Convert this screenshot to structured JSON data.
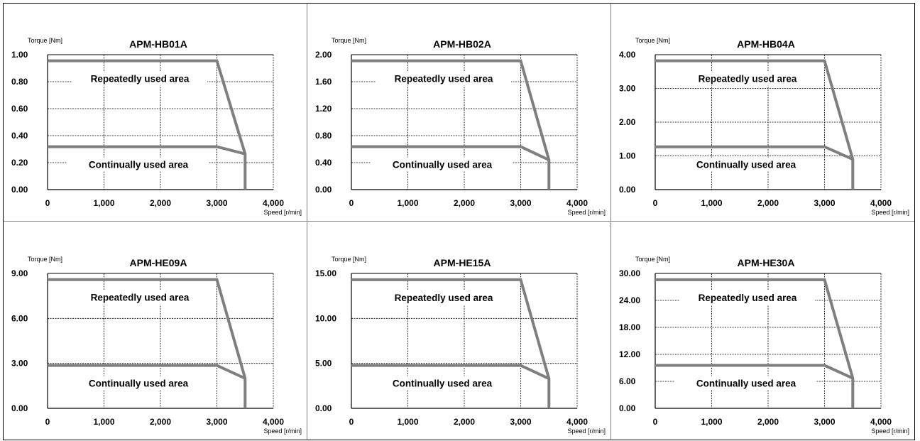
{
  "colors": {
    "curve": "#7f7f7f",
    "grid": "#000000",
    "frame": "#000000",
    "background": "#ffffff"
  },
  "common": {
    "ylabel": "Torque [Nm]",
    "xlabel": "Speed [r/min]",
    "repeated_label": "Repeatedly used area",
    "continual_label": "Continually used area",
    "x_ticks": [
      "0",
      "1,000",
      "2,000",
      "3,000",
      "4,000"
    ]
  },
  "chart_data": [
    {
      "type": "line",
      "title": "APM-HB01A",
      "xlim": [
        0,
        4000
      ],
      "ylim": [
        0,
        1.0
      ],
      "y_ticks": [
        0,
        0.2,
        0.4,
        0.6,
        0.8,
        1.0
      ],
      "y_tick_labels": [
        "0.00",
        "0.20",
        "0.40",
        "0.60",
        "0.80",
        "1.00"
      ],
      "series": [
        {
          "x": [
            0,
            3000,
            3500,
            3500
          ],
          "y": [
            0.955,
            0.955,
            0.265,
            0
          ]
        },
        {
          "x": [
            0,
            3000,
            3500
          ],
          "y": [
            0.318,
            0.318,
            0.265
          ]
        }
      ]
    },
    {
      "type": "line",
      "title": "APM-HB02A",
      "xlim": [
        0,
        4000
      ],
      "ylim": [
        0,
        2.0
      ],
      "y_ticks": [
        0,
        0.4,
        0.8,
        1.2,
        1.6,
        2.0
      ],
      "y_tick_labels": [
        "0.00",
        "0.40",
        "0.80",
        "1.20",
        "1.60",
        "2.00"
      ],
      "series": [
        {
          "x": [
            0,
            3000,
            3500,
            3500
          ],
          "y": [
            1.91,
            1.91,
            0.44,
            0
          ]
        },
        {
          "x": [
            0,
            3000,
            3500
          ],
          "y": [
            0.637,
            0.637,
            0.44
          ]
        }
      ]
    },
    {
      "type": "line",
      "title": "APM-HB04A",
      "xlim": [
        0,
        4000
      ],
      "ylim": [
        0,
        4.0
      ],
      "y_ticks": [
        0,
        1,
        2,
        3,
        4
      ],
      "y_tick_labels": [
        "0.00",
        "1.00",
        "2.00",
        "3.00",
        "4.00"
      ],
      "series": [
        {
          "x": [
            0,
            3000,
            3500,
            3500
          ],
          "y": [
            3.82,
            3.82,
            0.9,
            0
          ]
        },
        {
          "x": [
            0,
            3000,
            3500
          ],
          "y": [
            1.27,
            1.27,
            0.9
          ]
        }
      ]
    },
    {
      "type": "line",
      "title": "APM-HE09A",
      "xlim": [
        0,
        4000
      ],
      "ylim": [
        0,
        9.0
      ],
      "y_ticks": [
        0,
        3,
        6,
        9
      ],
      "y_tick_labels": [
        "0.00",
        "3.00",
        "6.00",
        "9.00"
      ],
      "series": [
        {
          "x": [
            0,
            3000,
            3500,
            3500
          ],
          "y": [
            8.59,
            8.59,
            2.0,
            0
          ]
        },
        {
          "x": [
            0,
            3000,
            3500
          ],
          "y": [
            2.86,
            2.86,
            2.0
          ]
        }
      ]
    },
    {
      "type": "line",
      "title": "APM-HE15A",
      "xlim": [
        0,
        4000
      ],
      "ylim": [
        0,
        15.0
      ],
      "y_ticks": [
        0,
        5,
        10,
        15
      ],
      "y_tick_labels": [
        "0.00",
        "5.00",
        "10.00",
        "15.00"
      ],
      "series": [
        {
          "x": [
            0,
            3000,
            3500,
            3500
          ],
          "y": [
            14.3,
            14.3,
            3.3,
            0
          ]
        },
        {
          "x": [
            0,
            3000,
            3500
          ],
          "y": [
            4.77,
            4.77,
            3.3
          ]
        }
      ]
    },
    {
      "type": "line",
      "title": "APM-HE30A",
      "xlim": [
        0,
        4000
      ],
      "ylim": [
        0,
        30.0
      ],
      "y_ticks": [
        0,
        6,
        12,
        18,
        24,
        30
      ],
      "y_tick_labels": [
        "0.00",
        "6.00",
        "12.00",
        "18.00",
        "24.00",
        "30.00"
      ],
      "series": [
        {
          "x": [
            0,
            3000,
            3500,
            3500
          ],
          "y": [
            28.6,
            28.6,
            6.7,
            0
          ]
        },
        {
          "x": [
            0,
            3000,
            3500
          ],
          "y": [
            9.55,
            9.55,
            6.7
          ]
        }
      ]
    }
  ]
}
